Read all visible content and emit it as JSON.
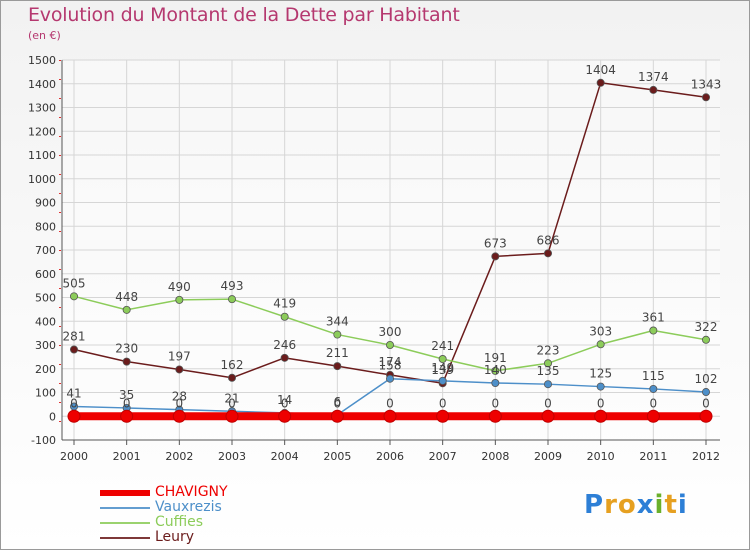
{
  "title": "Evolution du Montant de la Dette par Habitant",
  "unit_label": "(en €)",
  "logo": {
    "letters": [
      "P",
      "r",
      "o",
      "x",
      "i",
      "t",
      "i"
    ],
    "colors": [
      "#2d7fd6",
      "#e6a020",
      "#e6a020",
      "#2d7fd6",
      "#6ab02b",
      "#e6a020",
      "#2d7fd6"
    ]
  },
  "chart_data": {
    "type": "line",
    "x": [
      "2000",
      "2001",
      "2002",
      "2003",
      "2004",
      "2005",
      "2006",
      "2007",
      "2008",
      "2009",
      "2010",
      "2011",
      "2012"
    ],
    "ylim": [
      -100,
      1500
    ],
    "yticks": [
      "-100",
      "0",
      "100",
      "200",
      "300",
      "400",
      "500",
      "600",
      "700",
      "800",
      "900",
      "1000",
      "1100",
      "1200",
      "1300",
      "1400",
      "1500"
    ],
    "grid": true,
    "legend_position": "bottom-left",
    "series": [
      {
        "name": "CHAVIGNY",
        "color": "#ee0000",
        "values": [
          0,
          0,
          0,
          0,
          0,
          0,
          0,
          0,
          0,
          0,
          0,
          0,
          0
        ],
        "labels": [
          "0",
          "0",
          "0",
          "0",
          "0",
          "0",
          "0",
          "0",
          "0",
          "0",
          "0",
          "0",
          "0"
        ]
      },
      {
        "name": "Vauxrezis",
        "color": "#4d8fc9",
        "values": [
          41,
          35,
          28,
          21,
          14,
          6,
          158,
          149,
          140,
          135,
          125,
          115,
          102
        ],
        "labels": [
          "41",
          "35",
          "28",
          "21",
          "14",
          "6",
          "158",
          "149",
          "140",
          "135",
          "125",
          "115",
          "102"
        ]
      },
      {
        "name": "Cuffies",
        "color": "#8ccc5a",
        "values": [
          505,
          448,
          490,
          493,
          419,
          344,
          300,
          241,
          191,
          223,
          303,
          361,
          322
        ],
        "labels": [
          "505",
          "448",
          "490",
          "493",
          "419",
          "344",
          "300",
          "241",
          "191",
          "223",
          "303",
          "361",
          "322"
        ]
      },
      {
        "name": "Leury",
        "color": "#6b1c1c",
        "values": [
          281,
          230,
          197,
          162,
          246,
          211,
          174,
          139,
          673,
          686,
          1404,
          1374,
          1343
        ],
        "labels": [
          "281",
          "230",
          "197",
          "162",
          "246",
          "211",
          "174",
          "139",
          "673",
          "686",
          "1404",
          "1374",
          "1343"
        ]
      }
    ]
  }
}
